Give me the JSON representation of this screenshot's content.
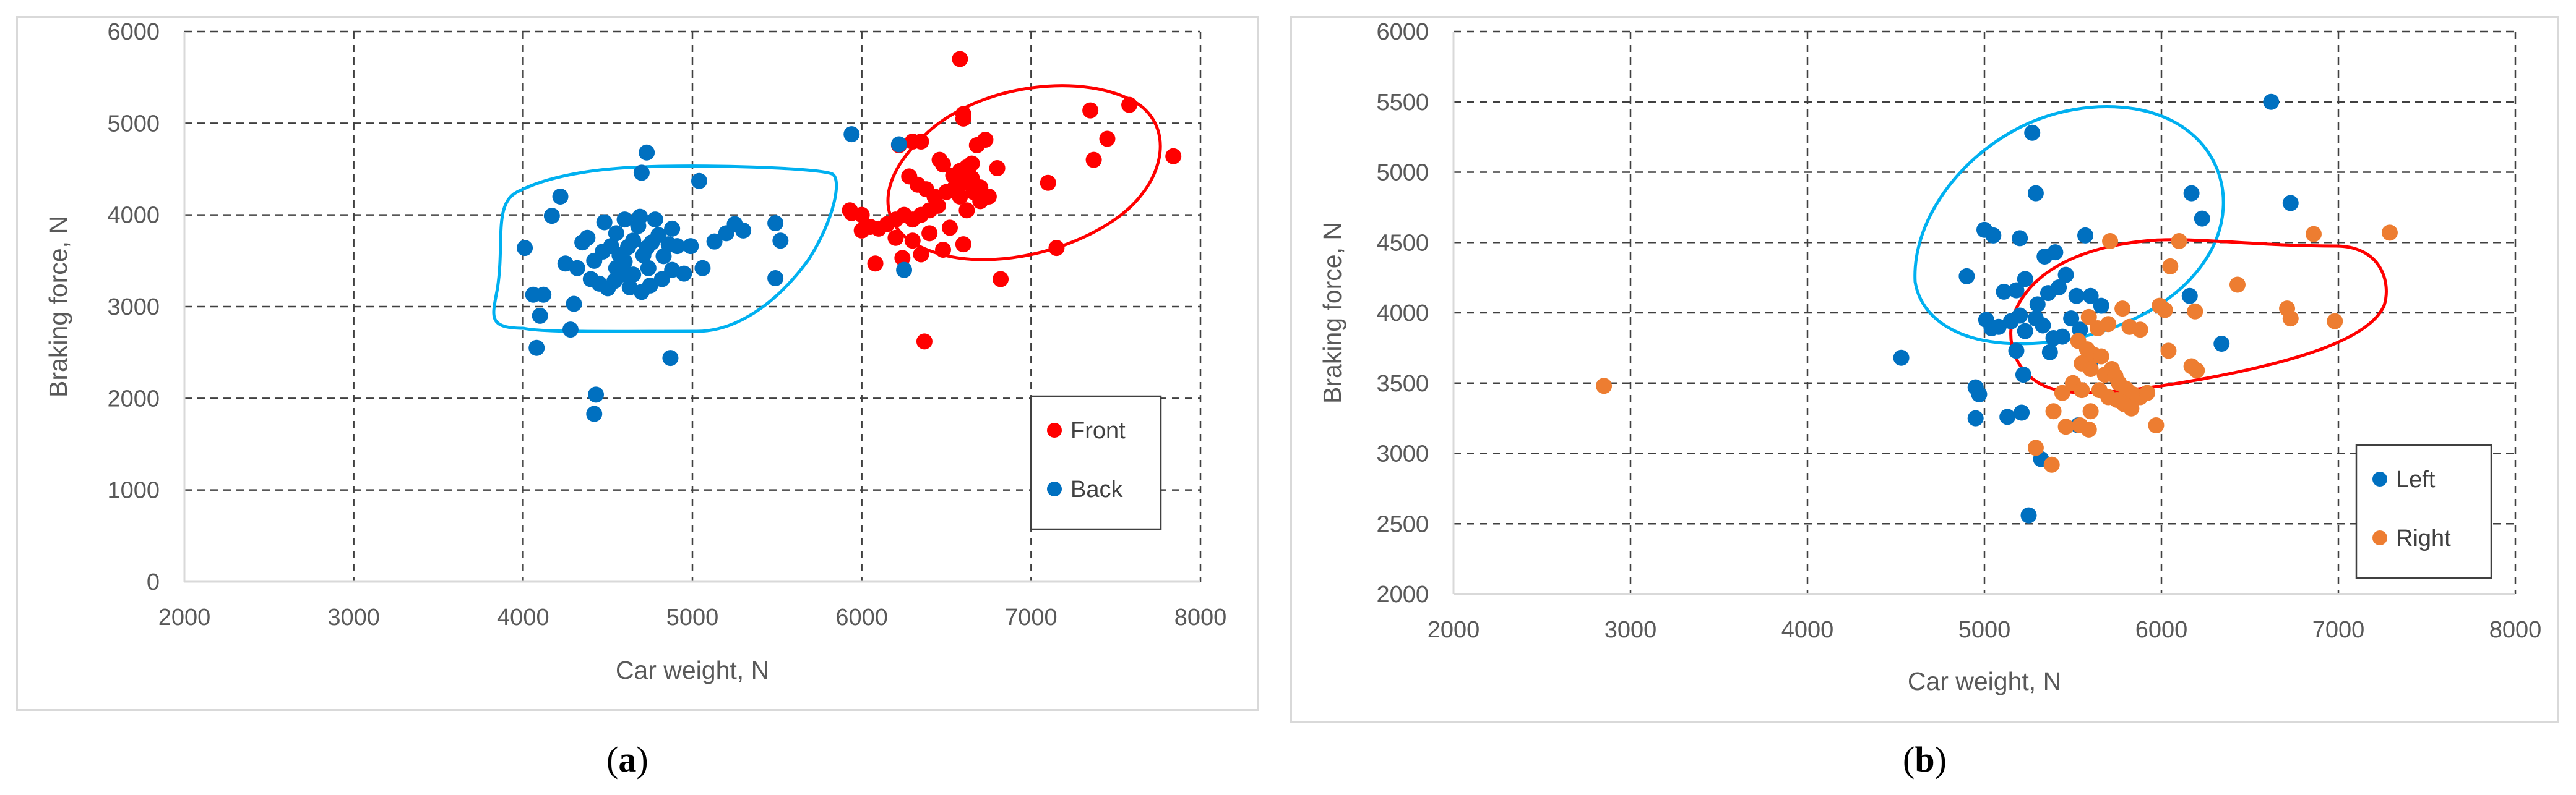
{
  "panels": [
    {
      "label_open": "(",
      "label_letter": "a",
      "label_close": ")"
    },
    {
      "label_open": "(",
      "label_letter": "b",
      "label_close": ")"
    }
  ],
  "chart_data": [
    {
      "type": "scatter",
      "xlabel": "Car weight, N",
      "ylabel": "Braking force, N",
      "xlim": [
        2000,
        8000
      ],
      "ylim": [
        0,
        6000
      ],
      "xticks": [
        2000,
        3000,
        4000,
        5000,
        6000,
        7000,
        8000
      ],
      "yticks": [
        0,
        1000,
        2000,
        3000,
        4000,
        5000,
        6000
      ],
      "grid": true,
      "legend_position": "bottom-right",
      "series": [
        {
          "name": "Front",
          "color": "#ff0000",
          "points": [
            [
              6580,
              5700
            ],
            [
              6600,
              5100
            ],
            [
              6600,
              5050
            ],
            [
              7580,
              5200
            ],
            [
              7350,
              5140
            ],
            [
              6300,
              4800
            ],
            [
              6350,
              4800
            ],
            [
              6220,
              4760
            ],
            [
              6680,
              4760
            ],
            [
              6460,
              4600
            ],
            [
              6730,
              4820
            ],
            [
              7450,
              4830
            ],
            [
              7370,
              4600
            ],
            [
              7840,
              4640
            ],
            [
              6800,
              4510
            ],
            [
              6280,
              4420
            ],
            [
              6330,
              4330
            ],
            [
              6540,
              4430
            ],
            [
              6580,
              4480
            ],
            [
              6620,
              4520
            ],
            [
              6650,
              4560
            ],
            [
              6480,
              4550
            ],
            [
              6380,
              4280
            ],
            [
              6430,
              4200
            ],
            [
              6500,
              4250
            ],
            [
              6550,
              4300
            ],
            [
              6600,
              4350
            ],
            [
              6650,
              4400
            ],
            [
              6700,
              4300
            ],
            [
              6750,
              4200
            ],
            [
              6450,
              4100
            ],
            [
              6400,
              4050
            ],
            [
              6350,
              4000
            ],
            [
              6300,
              3950
            ],
            [
              6250,
              4000
            ],
            [
              6200,
              3950
            ],
            [
              6150,
              3900
            ],
            [
              6100,
              3850
            ],
            [
              6050,
              3870
            ],
            [
              6000,
              3830
            ],
            [
              6000,
              4000
            ],
            [
              5930,
              4050
            ],
            [
              6200,
              3750
            ],
            [
              6300,
              3720
            ],
            [
              6400,
              3800
            ],
            [
              6520,
              3860
            ],
            [
              6580,
              4200
            ],
            [
              6620,
              4050
            ],
            [
              6660,
              4250
            ],
            [
              6700,
              4150
            ],
            [
              6080,
              3470
            ],
            [
              6240,
              3530
            ],
            [
              6350,
              3570
            ],
            [
              6480,
              3620
            ],
            [
              6600,
              3680
            ],
            [
              7100,
              4350
            ],
            [
              7150,
              3640
            ],
            [
              6820,
              3300
            ],
            [
              6370,
              2620
            ],
            [
              5940,
              4020
            ]
          ]
        },
        {
          "name": "Back",
          "color": "#0070c0",
          "points": [
            [
              4730,
              4680
            ],
            [
              4700,
              4460
            ],
            [
              5040,
              4370
            ],
            [
              5940,
              4880
            ],
            [
              6220,
              4770
            ],
            [
              4220,
              4200
            ],
            [
              4170,
              3990
            ],
            [
              4010,
              3640
            ],
            [
              4250,
              3470
            ],
            [
              4320,
              3420
            ],
            [
              4380,
              3750
            ],
            [
              4420,
              3500
            ],
            [
              4470,
              3600
            ],
            [
              4480,
              3920
            ],
            [
              4520,
              3660
            ],
            [
              4550,
              3420
            ],
            [
              4570,
              3560
            ],
            [
              4600,
              3490
            ],
            [
              4620,
              3650
            ],
            [
              4650,
              3720
            ],
            [
              4680,
              3880
            ],
            [
              4690,
              3980
            ],
            [
              4710,
              3560
            ],
            [
              4730,
              3640
            ],
            [
              4740,
              3420
            ],
            [
              4760,
              3700
            ],
            [
              4780,
              3950
            ],
            [
              4800,
              3780
            ],
            [
              4830,
              3550
            ],
            [
              4860,
              3680
            ],
            [
              4880,
              3400
            ],
            [
              4910,
              3660
            ],
            [
              4950,
              3360
            ],
            [
              4990,
              3660
            ],
            [
              5060,
              3420
            ],
            [
              5130,
              3710
            ],
            [
              5200,
              3800
            ],
            [
              5250,
              3900
            ],
            [
              5300,
              3830
            ],
            [
              5490,
              3910
            ],
            [
              5520,
              3720
            ],
            [
              5490,
              3310
            ],
            [
              4400,
              3300
            ],
            [
              4450,
              3250
            ],
            [
              4500,
              3200
            ],
            [
              4540,
              3280
            ],
            [
              4580,
              3350
            ],
            [
              4630,
              3210
            ],
            [
              4700,
              3160
            ],
            [
              4750,
              3230
            ],
            [
              4820,
              3300
            ],
            [
              4300,
              3030
            ],
            [
              4120,
              3130
            ],
            [
              4060,
              3130
            ],
            [
              4100,
              2900
            ],
            [
              4280,
              2750
            ],
            [
              4080,
              2550
            ],
            [
              4430,
              2040
            ],
            [
              4420,
              1830
            ],
            [
              4870,
              2440
            ],
            [
              6250,
              3400
            ],
            [
              4650,
              3350
            ],
            [
              4550,
              3800
            ],
            [
              4600,
              3950
            ],
            [
              4880,
              3850
            ],
            [
              4350,
              3700
            ]
          ]
        }
      ]
    },
    {
      "type": "scatter",
      "xlabel": "Car weight, N",
      "ylabel": "Braking force, N",
      "xlim": [
        2000,
        8000
      ],
      "ylim": [
        2000,
        6000
      ],
      "xticks": [
        2000,
        3000,
        4000,
        5000,
        6000,
        7000,
        8000
      ],
      "yticks": [
        2000,
        2500,
        3000,
        3500,
        4000,
        4500,
        5000,
        5500,
        6000
      ],
      "grid": true,
      "legend_position": "bottom-right",
      "series": [
        {
          "name": "Left",
          "color": "#0070c0",
          "points": [
            [
              6620,
              5500
            ],
            [
              5270,
              5280
            ],
            [
              5290,
              4850
            ],
            [
              6170,
              4850
            ],
            [
              6730,
              4780
            ],
            [
              6230,
              4670
            ],
            [
              5000,
              4590
            ],
            [
              5050,
              4550
            ],
            [
              5200,
              4530
            ],
            [
              5570,
              4550
            ],
            [
              5400,
              4430
            ],
            [
              5340,
              4400
            ],
            [
              4900,
              4260
            ],
            [
              5230,
              4240
            ],
            [
              5460,
              4270
            ],
            [
              5110,
              4150
            ],
            [
              5180,
              4160
            ],
            [
              5300,
              4060
            ],
            [
              5360,
              4140
            ],
            [
              5420,
              4180
            ],
            [
              5520,
              4120
            ],
            [
              5600,
              4120
            ],
            [
              5660,
              4050
            ],
            [
              6160,
              4120
            ],
            [
              5010,
              3950
            ],
            [
              5040,
              3890
            ],
            [
              5080,
              3900
            ],
            [
              5150,
              3940
            ],
            [
              5200,
              3980
            ],
            [
              5230,
              3870
            ],
            [
              5290,
              3960
            ],
            [
              5330,
              3910
            ],
            [
              5390,
              3820
            ],
            [
              5440,
              3830
            ],
            [
              5490,
              3960
            ],
            [
              5540,
              3880
            ],
            [
              4530,
              3680
            ],
            [
              5180,
              3730
            ],
            [
              5370,
              3720
            ],
            [
              5600,
              3650
            ],
            [
              5220,
              3560
            ],
            [
              6340,
              3780
            ],
            [
              4950,
              3470
            ],
            [
              4970,
              3420
            ],
            [
              4950,
              3250
            ],
            [
              5130,
              3260
            ],
            [
              5210,
              3290
            ],
            [
              5530,
              3200
            ],
            [
              5320,
              2960
            ],
            [
              5250,
              2560
            ]
          ]
        },
        {
          "name": "Right",
          "color": "#ed7d31",
          "points": [
            [
              2850,
              3480
            ],
            [
              7290,
              4570
            ],
            [
              6860,
              4560
            ],
            [
              5710,
              4510
            ],
            [
              6100,
              4510
            ],
            [
              6050,
              4330
            ],
            [
              6430,
              4200
            ],
            [
              5990,
              4050
            ],
            [
              6020,
              4020
            ],
            [
              6190,
              4010
            ],
            [
              6710,
              4030
            ],
            [
              6730,
              3960
            ],
            [
              6980,
              3940
            ],
            [
              5590,
              3970
            ],
            [
              5640,
              3890
            ],
            [
              5700,
              3920
            ],
            [
              5780,
              4030
            ],
            [
              5820,
              3900
            ],
            [
              5880,
              3880
            ],
            [
              6040,
              3730
            ],
            [
              5530,
              3800
            ],
            [
              5580,
              3740
            ],
            [
              5620,
              3700
            ],
            [
              5660,
              3690
            ],
            [
              5550,
              3640
            ],
            [
              5600,
              3600
            ],
            [
              5680,
              3560
            ],
            [
              5720,
              3600
            ],
            [
              5740,
              3550
            ],
            [
              5760,
              3500
            ],
            [
              5800,
              3460
            ],
            [
              5840,
              3420
            ],
            [
              5880,
              3400
            ],
            [
              5920,
              3430
            ],
            [
              5650,
              3450
            ],
            [
              5700,
              3400
            ],
            [
              5750,
              3380
            ],
            [
              5790,
              3350
            ],
            [
              5830,
              3320
            ],
            [
              5500,
              3500
            ],
            [
              5550,
              3450
            ],
            [
              5440,
              3430
            ],
            [
              5600,
              3300
            ],
            [
              5390,
              3300
            ],
            [
              5970,
              3200
            ],
            [
              6170,
              3620
            ],
            [
              6200,
              3590
            ],
            [
              5540,
              3200
            ],
            [
              5590,
              3170
            ],
            [
              5290,
              3040
            ],
            [
              5380,
              2920
            ],
            [
              5460,
              3190
            ]
          ]
        }
      ]
    }
  ]
}
